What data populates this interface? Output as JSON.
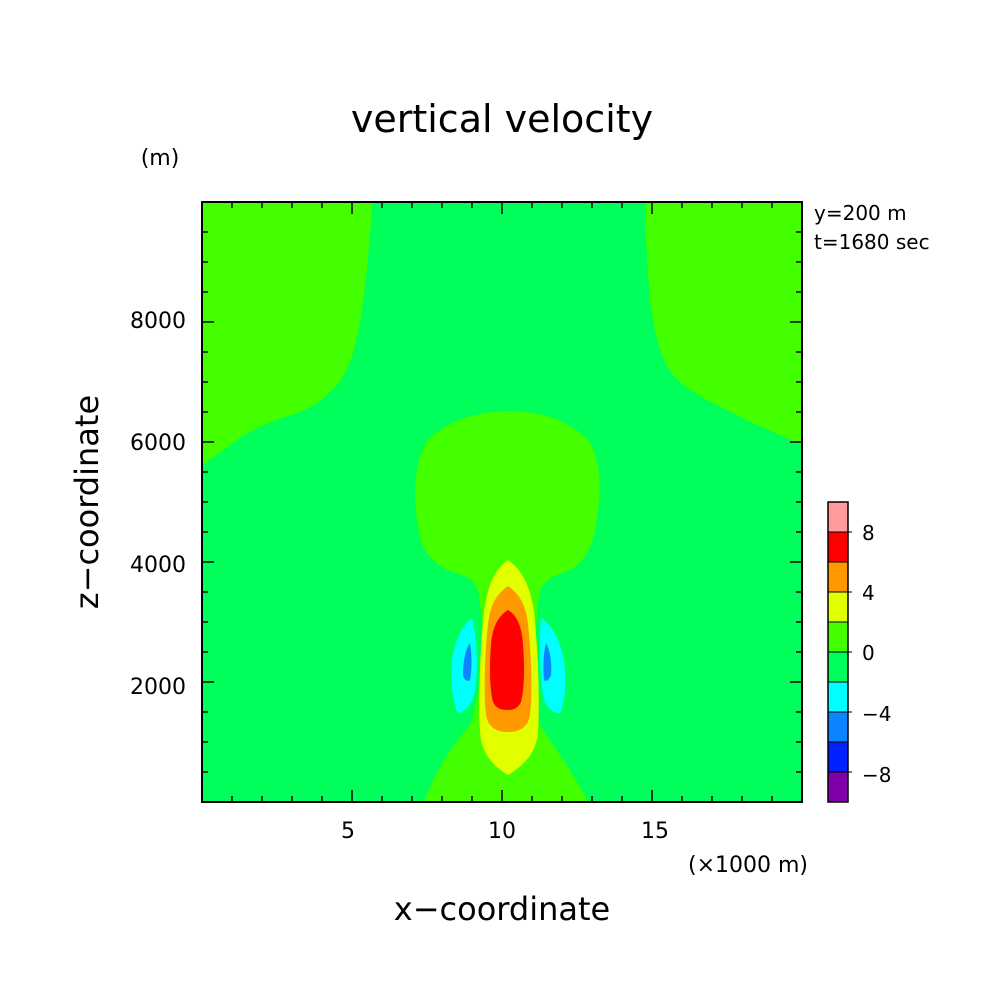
{
  "chart_data": {
    "type": "heatmap",
    "subtype": "filled-contour",
    "title": "vertical velocity",
    "xlabel": "x−coordinate",
    "ylabel": "z−coordinate",
    "x_units": "(×1000 m)",
    "y_units": "(m)",
    "annotations": [
      "y=200 m",
      "t=1680 sec"
    ],
    "xlim": [
      0,
      20
    ],
    "ylim": [
      0,
      10000
    ],
    "x_ticks": [
      5,
      10,
      15
    ],
    "y_ticks": [
      2000,
      4000,
      6000,
      8000
    ],
    "grid": false,
    "colorbar": {
      "placement": "right",
      "levels": [
        -10,
        -8,
        -6,
        -4,
        -2,
        0,
        2,
        4,
        6,
        8,
        10
      ],
      "tick_values": [
        -8,
        -4,
        0,
        4,
        8
      ],
      "tick_labels": [
        "−8",
        "−4",
        "0",
        "4",
        "8"
      ],
      "colors": [
        "#7f00a8",
        "#0020ff",
        "#0a84ff",
        "#00ffff",
        "#00ff5a",
        "#44ff00",
        "#e2ff00",
        "#ff9900",
        "#ff0000",
        "#ff9b9b"
      ]
    },
    "regions": [
      {
        "level_range": [
          0,
          2
        ],
        "color": "#44ff00",
        "description": "upper-left corner"
      },
      {
        "level_range": [
          0,
          2
        ],
        "color": "#44ff00",
        "description": "upper-right corner"
      },
      {
        "level_range": [
          0,
          2
        ],
        "color": "#44ff00",
        "description": "plume 0–6500 m around x≈10"
      },
      {
        "level_range": [
          2,
          4
        ],
        "color": "#e2ff00",
        "description": "updraft 500–4000 m"
      },
      {
        "level_range": [
          4,
          6
        ],
        "color": "#ff9900",
        "description": "updraft 1200–3600 m"
      },
      {
        "level_range": [
          6,
          8
        ],
        "color": "#ff0000",
        "description": "updraft core 1700–3200 m"
      },
      {
        "level_range": [
          -4,
          -2
        ],
        "color": "#00ffff",
        "description": "downdrafts either side of updraft"
      },
      {
        "level_range": [
          -6,
          -4
        ],
        "color": "#0a84ff",
        "description": "downdraft cores"
      }
    ]
  }
}
